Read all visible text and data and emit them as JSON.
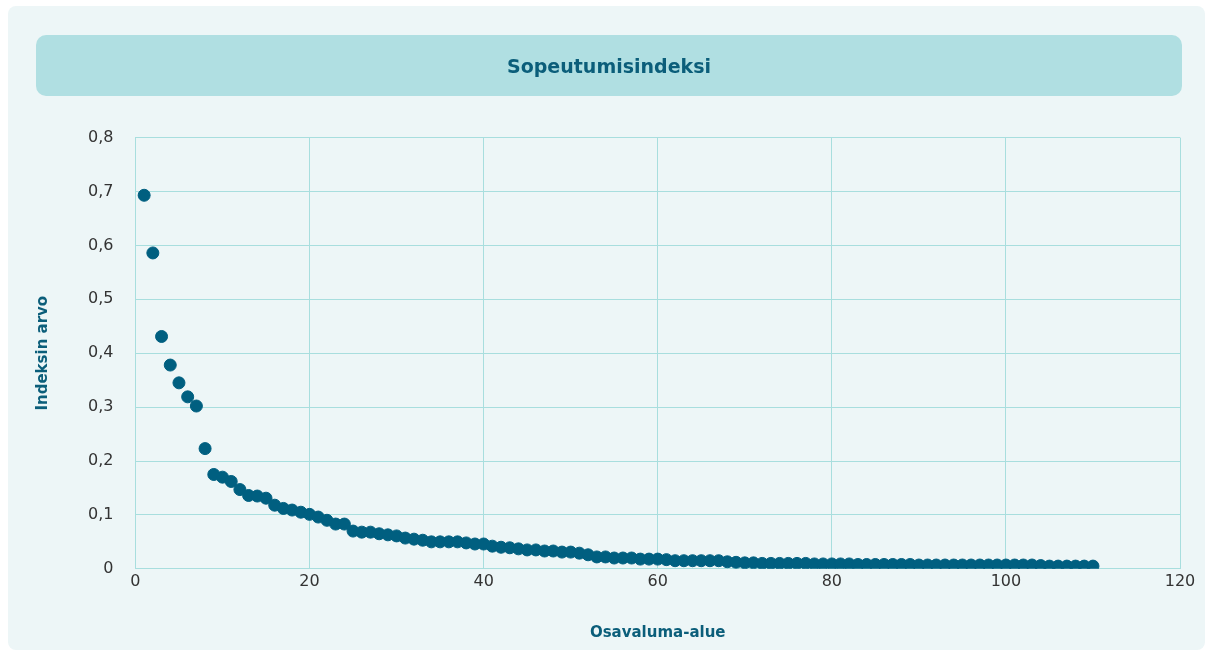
{
  "chart_data": {
    "type": "scatter",
    "title": "Sopeutumisindeksi",
    "xlabel": "Osavaluma-alue",
    "ylabel": "Indeksin arvo",
    "x": [
      1,
      2,
      3,
      4,
      5,
      6,
      7,
      8,
      9,
      10,
      11,
      12,
      13,
      14,
      15,
      16,
      17,
      18,
      19,
      20,
      21,
      22,
      23,
      24,
      25,
      26,
      27,
      28,
      29,
      30,
      31,
      32,
      33,
      34,
      35,
      36,
      37,
      38,
      39,
      40,
      41,
      42,
      43,
      44,
      45,
      46,
      47,
      48,
      49,
      50,
      51,
      52,
      53,
      54,
      55,
      56,
      57,
      58,
      59,
      60,
      61,
      62,
      63,
      64,
      65,
      66,
      67,
      68,
      69,
      70,
      71,
      72,
      73,
      74,
      75,
      76,
      77,
      78,
      79,
      80,
      81,
      82,
      83,
      84,
      85,
      86,
      87,
      88,
      89,
      90,
      91,
      92,
      93,
      94,
      95,
      96,
      97,
      98,
      99,
      100,
      101,
      102,
      103,
      104,
      105,
      106,
      107,
      108,
      109,
      110
    ],
    "series": [
      {
        "color": "#005f80",
        "values": [
          0.693,
          0.586,
          0.431,
          0.378,
          0.345,
          0.319,
          0.302,
          0.223,
          0.175,
          0.17,
          0.162,
          0.147,
          0.136,
          0.135,
          0.131,
          0.118,
          0.112,
          0.109,
          0.105,
          0.101,
          0.096,
          0.09,
          0.083,
          0.083,
          0.07,
          0.068,
          0.068,
          0.065,
          0.063,
          0.061,
          0.057,
          0.055,
          0.053,
          0.05,
          0.05,
          0.05,
          0.05,
          0.048,
          0.046,
          0.046,
          0.042,
          0.04,
          0.039,
          0.037,
          0.035,
          0.035,
          0.033,
          0.033,
          0.031,
          0.031,
          0.029,
          0.026,
          0.022,
          0.022,
          0.02,
          0.02,
          0.02,
          0.018,
          0.018,
          0.018,
          0.017,
          0.015,
          0.015,
          0.015,
          0.015,
          0.015,
          0.015,
          0.013,
          0.012,
          0.011,
          0.011,
          0.01,
          0.01,
          0.01,
          0.01,
          0.01,
          0.01,
          0.009,
          0.009,
          0.009,
          0.009,
          0.009,
          0.008,
          0.008,
          0.008,
          0.008,
          0.008,
          0.008,
          0.008,
          0.007,
          0.007,
          0.007,
          0.007,
          0.007,
          0.007,
          0.007,
          0.007,
          0.007,
          0.007,
          0.007,
          0.007,
          0.007,
          0.007,
          0.006,
          0.005,
          0.005,
          0.005,
          0.005,
          0.005,
          0.005
        ]
      }
    ],
    "xlim": [
      0,
      120
    ],
    "xticks": [
      0,
      20,
      40,
      60,
      80,
      100,
      120
    ],
    "ylim": [
      0,
      0.8
    ],
    "yticks": [
      0,
      {
        "value": 0.1,
        "label": "0,1"
      },
      {
        "value": 0.2,
        "label": "0,2"
      },
      {
        "value": 0.3,
        "label": "0,3"
      },
      {
        "value": 0.4,
        "label": "0,4"
      },
      {
        "value": 0.5,
        "label": "0,5"
      },
      {
        "value": 0.6,
        "label": "0,6"
      },
      {
        "value": 0.7,
        "label": "0,7"
      },
      {
        "value": 0.8,
        "label": "0,8"
      }
    ],
    "grid": true,
    "marker": "circle"
  }
}
